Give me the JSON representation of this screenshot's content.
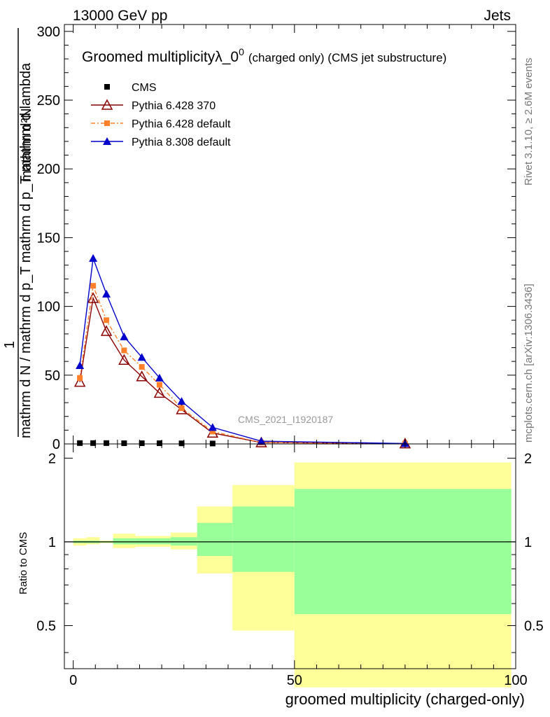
{
  "header": {
    "energy_label": "13000 GeV pp",
    "process_label": "Jets"
  },
  "side_labels": {
    "rivet": "Rivet 3.1.10, ≥ 2.6M events",
    "mcplots": "mcplots.cern.ch [arXiv:1306.3436]"
  },
  "chart_data": [
    {
      "type": "line",
      "title": "Groomed multiplicityλ_0",
      "title_sup": "0",
      "title_suffix": "(charged only) (CMS jet substructure)",
      "analysis_tag": "CMS_2021_I1920187",
      "ylabel_numerator": "mathrm d²N",
      "ylabel_factor": "1",
      "ylabel_denominator": "mathrm d N / mathrm d p_T mathrm d p_T mathrm d lambda",
      "ylim": [
        0,
        305
      ],
      "yticks": [
        0,
        50,
        100,
        150,
        200,
        250,
        300
      ],
      "xlim": [
        -2,
        100
      ],
      "legend_position": "top-left",
      "series": [
        {
          "name": "CMS",
          "color": "#000000",
          "marker": "square",
          "x": [
            1.5,
            4.5,
            7.5,
            11.5,
            15.5,
            19.5,
            24.5,
            31.5
          ],
          "y": [
            0.6,
            0.6,
            0.6,
            0.5,
            0.5,
            0.5,
            0.4,
            0.3
          ]
        },
        {
          "name": "Pythia 6.428 370",
          "color": "#8b0000",
          "marker": "open-triangle",
          "x": [
            1.5,
            4.5,
            7.5,
            11.5,
            15.5,
            19.5,
            24.5,
            31.5,
            42.5,
            75
          ],
          "y": [
            45,
            106,
            82,
            61,
            49,
            37,
            25,
            8,
            1,
            0.2
          ]
        },
        {
          "name": "Pythia 6.428 default",
          "color": "#ff7f2a",
          "marker": "square",
          "x": [
            1.5,
            4.5,
            7.5,
            11.5,
            15.5,
            19.5,
            24.5,
            31.5,
            42.5,
            75
          ],
          "y": [
            48,
            115,
            90,
            68,
            56,
            43,
            26,
            9,
            1,
            0.2
          ]
        },
        {
          "name": "Pythia 8.308 default",
          "color": "#0000cc",
          "marker": "triangle",
          "x": [
            1.5,
            4.5,
            7.5,
            11.5,
            15.5,
            19.5,
            24.5,
            31.5,
            42.5,
            75
          ],
          "y": [
            57,
            135,
            109,
            78,
            63,
            48,
            31,
            12,
            2,
            0.3
          ]
        }
      ]
    },
    {
      "type": "area",
      "ylabel": "Ratio to CMS",
      "xlabel": "groomed multiplicity (charged-only)",
      "xlim": [
        -2,
        100
      ],
      "ylim": [
        0.35,
        2.25
      ],
      "xticks": [
        0,
        50,
        100
      ],
      "yticks": [
        0.5,
        1,
        2
      ],
      "reference_line": 1,
      "bins": [
        {
          "x0": 0,
          "x1": 3,
          "stat_lo": 0.99,
          "stat_hi": 1.01,
          "tot_lo": 0.97,
          "tot_hi": 1.03
        },
        {
          "x0": 3,
          "x1": 6,
          "stat_lo": 0.99,
          "stat_hi": 1.01,
          "tot_lo": 0.98,
          "tot_hi": 1.04
        },
        {
          "x0": 6,
          "x1": 9,
          "stat_lo": 0.995,
          "stat_hi": 1.005,
          "tot_lo": 0.99,
          "tot_hi": 1.01
        },
        {
          "x0": 9,
          "x1": 14,
          "stat_lo": 0.98,
          "stat_hi": 1.03,
          "tot_lo": 0.95,
          "tot_hi": 1.07
        },
        {
          "x0": 14,
          "x1": 22,
          "stat_lo": 0.98,
          "stat_hi": 1.03,
          "tot_lo": 0.96,
          "tot_hi": 1.05
        },
        {
          "x0": 22,
          "x1": 28,
          "stat_lo": 0.97,
          "stat_hi": 1.04,
          "tot_lo": 0.94,
          "tot_hi": 1.08
        },
        {
          "x0": 28,
          "x1": 36,
          "stat_lo": 0.89,
          "stat_hi": 1.17,
          "tot_lo": 0.77,
          "tot_hi": 1.34
        },
        {
          "x0": 36,
          "x1": 50,
          "stat_lo": 0.78,
          "stat_hi": 1.34,
          "tot_lo": 0.48,
          "tot_hi": 1.6
        },
        {
          "x0": 50,
          "x1": 99,
          "stat_lo": 0.55,
          "stat_hi": 1.55,
          "tot_lo": 0.3,
          "tot_hi": 1.93
        }
      ],
      "colors": {
        "stat": "#99ff99",
        "total": "#ffff99"
      }
    }
  ]
}
